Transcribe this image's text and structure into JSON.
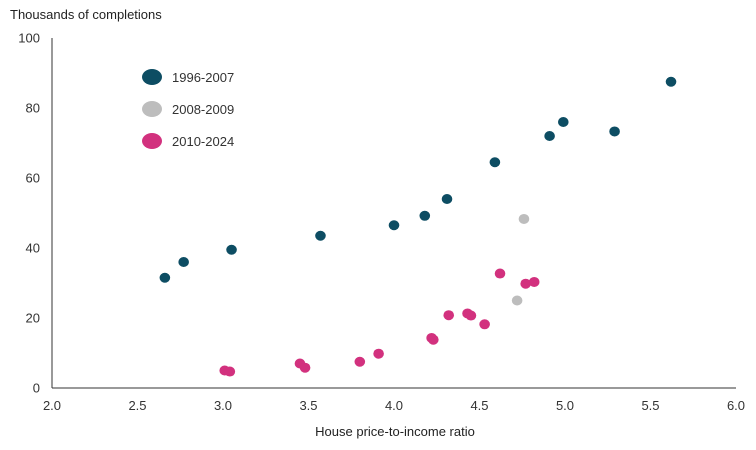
{
  "chart_data": {
    "type": "scatter",
    "ylabel": "Thousands of completions",
    "xlabel": "House price-to-income ratio",
    "xlim": [
      2.0,
      6.0
    ],
    "ylim": [
      0,
      100
    ],
    "x_ticks": [
      "2.0",
      "2.5",
      "3.0",
      "3.5",
      "4.0",
      "4.5",
      "5.0",
      "5.5",
      "6.0"
    ],
    "y_ticks": [
      "0",
      "20",
      "40",
      "60",
      "80",
      "100"
    ],
    "grid": false,
    "legend_position": "top-left",
    "series": [
      {
        "name": "1996-2007",
        "color": "#0d4d63",
        "points": [
          [
            2.66,
            31.5
          ],
          [
            2.77,
            36.0
          ],
          [
            3.05,
            39.5
          ],
          [
            3.57,
            43.5
          ],
          [
            4.0,
            46.5
          ],
          [
            4.18,
            49.2
          ],
          [
            4.31,
            54.0
          ],
          [
            4.59,
            64.5
          ],
          [
            4.91,
            72.0
          ],
          [
            4.99,
            76.0
          ],
          [
            5.29,
            73.3
          ],
          [
            5.62,
            87.5
          ]
        ]
      },
      {
        "name": "2008-2009",
        "color": "#bdbdbd",
        "points": [
          [
            4.76,
            48.3
          ],
          [
            4.72,
            25.0
          ]
        ]
      },
      {
        "name": "2010-2024",
        "color": "#d2317e",
        "points": [
          [
            3.01,
            5.0
          ],
          [
            3.04,
            4.7
          ],
          [
            3.45,
            7.0
          ],
          [
            3.48,
            5.8
          ],
          [
            3.8,
            7.5
          ],
          [
            3.91,
            9.8
          ],
          [
            4.22,
            14.3
          ],
          [
            4.23,
            13.8
          ],
          [
            4.32,
            20.8
          ],
          [
            4.43,
            21.3
          ],
          [
            4.45,
            20.7
          ],
          [
            4.53,
            18.2
          ],
          [
            4.62,
            32.7
          ],
          [
            4.77,
            29.8
          ],
          [
            4.82,
            30.3
          ]
        ]
      }
    ]
  }
}
